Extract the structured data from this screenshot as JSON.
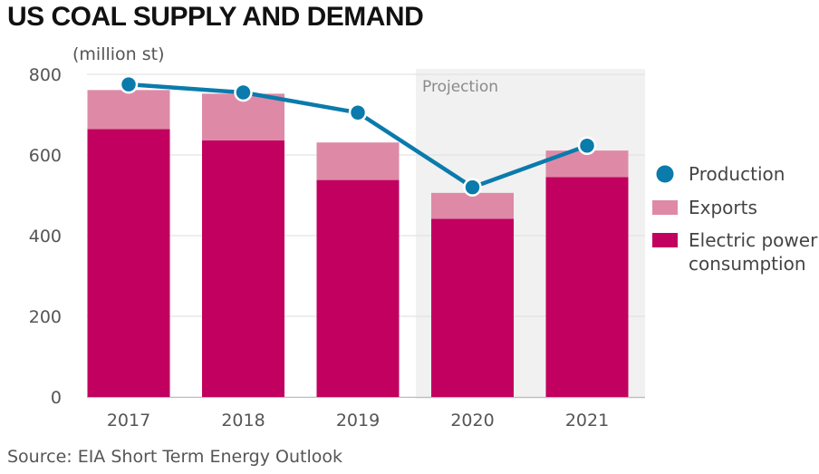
{
  "title": "US COAL SUPPLY AND DEMAND",
  "source": "Source: EIA Short Term Energy Outlook",
  "chart_data": {
    "type": "bar",
    "stacked": true,
    "unit": "(million st)",
    "categories": [
      "2017",
      "2018",
      "2019",
      "2020",
      "2021"
    ],
    "series": [
      {
        "name": "Electric power consumption",
        "type": "bar",
        "color": "#c2005f",
        "values": [
          664,
          636,
          538,
          442,
          545
        ]
      },
      {
        "name": "Exports",
        "type": "bar",
        "color": "#de8aa7",
        "values": [
          97,
          116,
          93,
          64,
          66
        ]
      },
      {
        "name": "Production",
        "type": "line",
        "color": "#0a7bab",
        "values": [
          775,
          755,
          705,
          520,
          623
        ]
      }
    ],
    "ylim": [
      0,
      800
    ],
    "yticks": [
      0,
      200,
      400,
      600,
      800
    ],
    "grid": true,
    "projection": {
      "label": "Projection",
      "from": "2020",
      "to": "2021"
    },
    "legend": {
      "position": "right",
      "items": [
        {
          "marker": "circle",
          "color": "#0a7bab",
          "lines": [
            "Production"
          ]
        },
        {
          "marker": "square",
          "color": "#de8aa7",
          "lines": [
            "Exports"
          ]
        },
        {
          "marker": "square",
          "color": "#c2005f",
          "lines": [
            "Electric power",
            "consumption"
          ]
        }
      ]
    }
  }
}
